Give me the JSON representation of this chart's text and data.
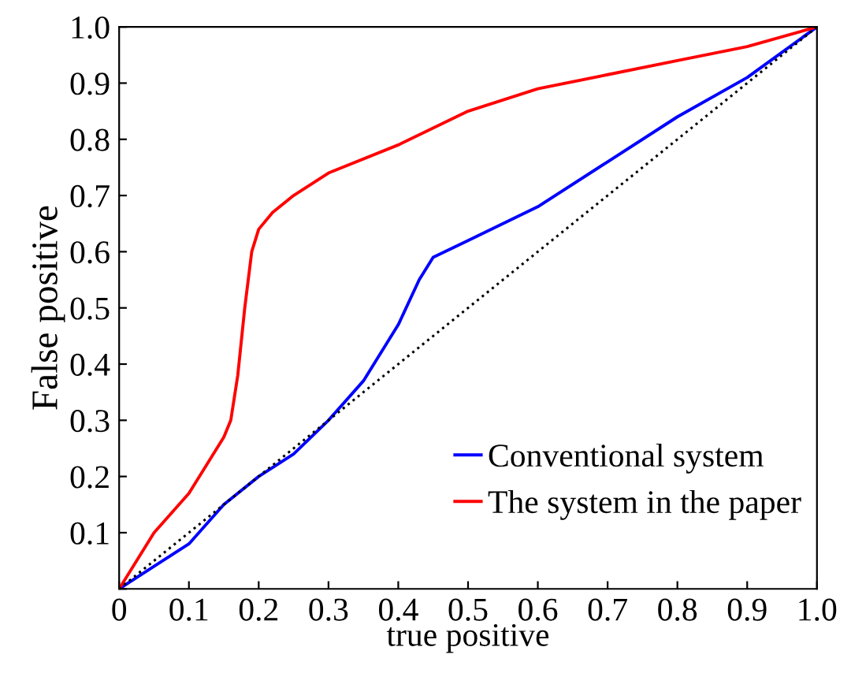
{
  "chart_data": {
    "type": "line",
    "xlabel": "true positive",
    "ylabel": "False positive",
    "xlim": [
      0,
      1
    ],
    "ylim": [
      0,
      1
    ],
    "xticks": [
      0,
      0.1,
      0.2,
      0.3,
      0.4,
      0.5,
      0.6,
      0.7,
      0.8,
      0.9,
      {
        "value": 1,
        "label": "1.0"
      }
    ],
    "yticks": [
      {
        "value": 0,
        "label": null
      },
      0.1,
      0.2,
      0.3,
      0.4,
      0.5,
      0.6,
      0.7,
      0.8,
      0.9,
      {
        "value": 1,
        "label": "1.0"
      }
    ],
    "grid": false,
    "legend": "bottom right",
    "marker": "none",
    "series": [
      {
        "name": "Conventional system",
        "color": "#0000ff",
        "x": [
          0,
          0.05,
          0.1,
          0.15,
          0.2,
          0.25,
          0.3,
          0.35,
          0.4,
          0.43,
          0.45,
          0.5,
          0.6,
          0.7,
          0.8,
          0.9,
          1
        ],
        "values": [
          0,
          0.04,
          0.08,
          0.15,
          0.2,
          0.24,
          0.3,
          0.37,
          0.47,
          0.55,
          0.59,
          0.62,
          0.68,
          0.76,
          0.84,
          0.91,
          1
        ]
      },
      {
        "name": "The system in the paper",
        "color": "#ff0000",
        "x": [
          0,
          0.05,
          0.1,
          0.15,
          0.16,
          0.17,
          0.18,
          0.19,
          0.2,
          0.22,
          0.25,
          0.3,
          0.4,
          0.5,
          0.6,
          0.7,
          0.8,
          0.9,
          1
        ],
        "values": [
          0,
          0.1,
          0.17,
          0.27,
          0.3,
          0.38,
          0.5,
          0.6,
          0.64,
          0.67,
          0.7,
          0.74,
          0.79,
          0.85,
          0.89,
          0.915,
          0.94,
          0.965,
          1
        ]
      },
      {
        "color": "#000000",
        "line_style": "dotted",
        "x": [
          0,
          1
        ],
        "values": [
          0,
          1
        ]
      }
    ]
  }
}
